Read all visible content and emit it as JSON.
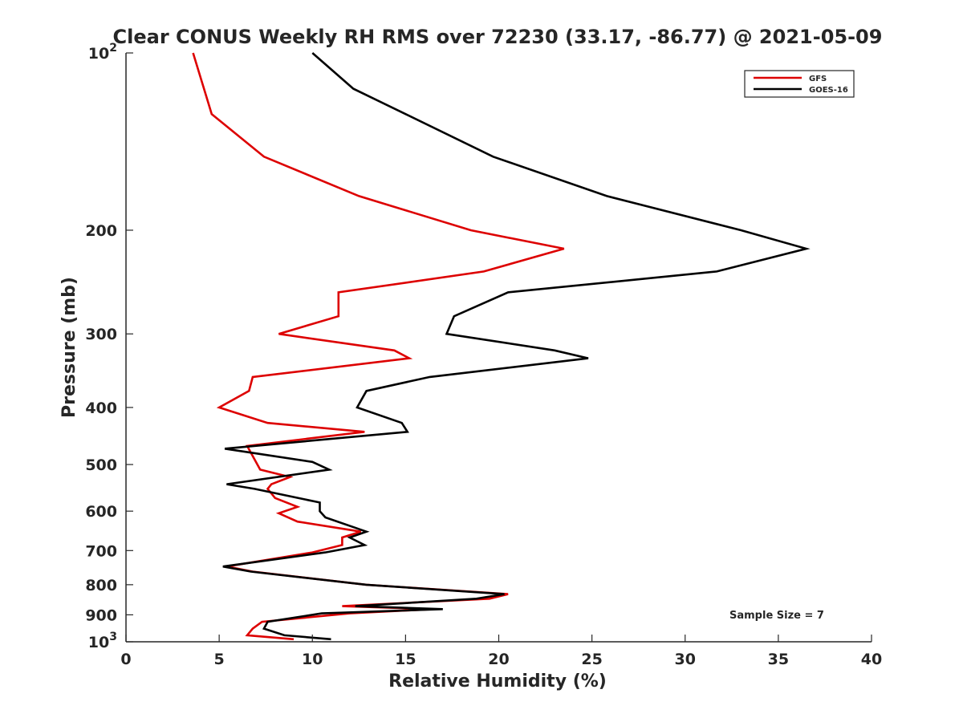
{
  "chart_data": {
    "type": "line",
    "title": "Clear CONUS Weekly RH RMS over 72230 (33.17, -86.77) @ 2021-05-09",
    "xlabel": "Relative Humidity (%)",
    "ylabel": "Pressure (mb)",
    "xlim": [
      0,
      40
    ],
    "ylim": [
      100,
      1000
    ],
    "yscale": "log",
    "y_reversed": true,
    "x_ticks": [
      {
        "value": 0,
        "label": "0"
      },
      {
        "value": 5,
        "label": "5"
      },
      {
        "value": 10,
        "label": "10"
      },
      {
        "value": 15,
        "label": "15"
      },
      {
        "value": 20,
        "label": "20"
      },
      {
        "value": 25,
        "label": "25"
      },
      {
        "value": 30,
        "label": "30"
      },
      {
        "value": 35,
        "label": "35"
      },
      {
        "value": 40,
        "label": "40"
      }
    ],
    "y_ticks": [
      {
        "value": 100,
        "base": "10",
        "exp": "2"
      },
      {
        "value": 200,
        "label": "200"
      },
      {
        "value": 300,
        "label": "300"
      },
      {
        "value": 400,
        "label": "400"
      },
      {
        "value": 500,
        "label": "500"
      },
      {
        "value": 600,
        "label": "600"
      },
      {
        "value": 700,
        "label": "700"
      },
      {
        "value": 800,
        "label": "800"
      },
      {
        "value": 900,
        "label": "900"
      },
      {
        "value": 1000,
        "base": "10",
        "exp": "3"
      }
    ],
    "legend_position": "top-right",
    "annotation": "Sample Size = 7",
    "series": [
      {
        "name": "GFS",
        "color": "#dd0000",
        "points": [
          [
            3.6,
            100
          ],
          [
            4.6,
            127
          ],
          [
            7.4,
            150
          ],
          [
            12.5,
            175
          ],
          [
            18.5,
            200
          ],
          [
            23.5,
            215
          ],
          [
            19.2,
            235
          ],
          [
            11.4,
            255
          ],
          [
            11.4,
            280
          ],
          [
            8.2,
            300
          ],
          [
            14.4,
            320
          ],
          [
            15.2,
            330
          ],
          [
            6.8,
            355
          ],
          [
            6.6,
            375
          ],
          [
            5.0,
            400
          ],
          [
            7.6,
            425
          ],
          [
            12.8,
            440
          ],
          [
            6.5,
            465
          ],
          [
            7.2,
            510
          ],
          [
            8.8,
            525
          ],
          [
            7.8,
            540
          ],
          [
            7.6,
            550
          ],
          [
            8.0,
            570
          ],
          [
            9.2,
            590
          ],
          [
            8.2,
            605
          ],
          [
            9.2,
            625
          ],
          [
            12.6,
            650
          ],
          [
            11.6,
            665
          ],
          [
            11.6,
            685
          ],
          [
            10.0,
            705
          ],
          [
            5.4,
            745
          ],
          [
            6.8,
            760
          ],
          [
            12.9,
            800
          ],
          [
            20.5,
            830
          ],
          [
            19.5,
            845
          ],
          [
            11.6,
            870
          ],
          [
            16.5,
            880
          ],
          [
            12.0,
            895
          ],
          [
            7.3,
            925
          ],
          [
            6.8,
            950
          ],
          [
            6.5,
            975
          ],
          [
            9.0,
            990
          ]
        ]
      },
      {
        "name": "GOES-16",
        "color": "#000000",
        "points": [
          [
            10.0,
            100
          ],
          [
            12.2,
            115
          ],
          [
            15.0,
            127
          ],
          [
            19.7,
            150
          ],
          [
            25.8,
            175
          ],
          [
            33.0,
            200
          ],
          [
            36.5,
            215
          ],
          [
            31.7,
            235
          ],
          [
            20.5,
            255
          ],
          [
            17.6,
            280
          ],
          [
            17.2,
            300
          ],
          [
            23.0,
            320
          ],
          [
            24.8,
            330
          ],
          [
            16.3,
            355
          ],
          [
            12.9,
            375
          ],
          [
            12.4,
            400
          ],
          [
            14.8,
            425
          ],
          [
            15.1,
            440
          ],
          [
            5.3,
            470
          ],
          [
            10.0,
            495
          ],
          [
            10.9,
            510
          ],
          [
            5.4,
            540
          ],
          [
            6.9,
            550
          ],
          [
            10.4,
            580
          ],
          [
            10.4,
            600
          ],
          [
            10.7,
            615
          ],
          [
            12.9,
            650
          ],
          [
            12.0,
            665
          ],
          [
            12.8,
            685
          ],
          [
            10.7,
            705
          ],
          [
            5.2,
            745
          ],
          [
            6.7,
            760
          ],
          [
            12.9,
            800
          ],
          [
            20.3,
            830
          ],
          [
            18.8,
            845
          ],
          [
            12.3,
            870
          ],
          [
            17.0,
            880
          ],
          [
            10.5,
            895
          ],
          [
            7.6,
            925
          ],
          [
            7.4,
            950
          ],
          [
            8.5,
            975
          ],
          [
            11.0,
            990
          ]
        ]
      }
    ]
  }
}
